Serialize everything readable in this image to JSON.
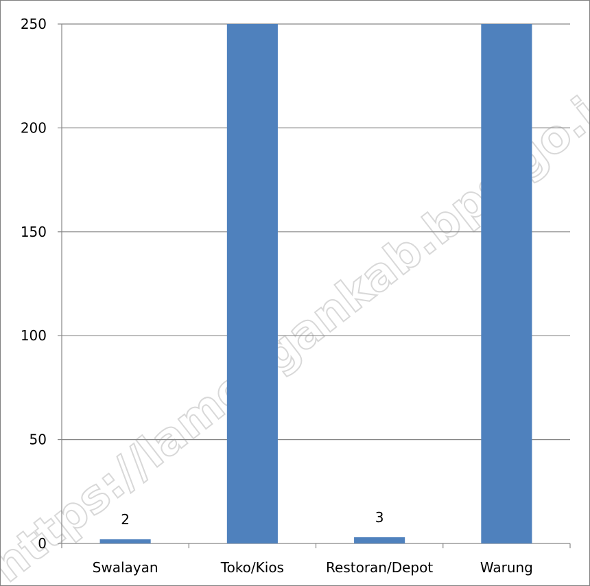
{
  "watermark": "https://lamongankab.bps.go.id",
  "chart_data": {
    "type": "bar",
    "categories": [
      "Swalayan",
      "Toko/Kios",
      "Restoran/Depot",
      "Warung"
    ],
    "values": [
      2,
      250,
      3,
      250
    ],
    "data_labels": [
      "2",
      "",
      "3",
      ""
    ],
    "ylim": [
      0,
      250
    ],
    "yticks": [
      0,
      50,
      100,
      150,
      200,
      250
    ],
    "grid": true,
    "bar_color": "#4f81bd",
    "title": "",
    "xlabel": "",
    "ylabel": ""
  }
}
